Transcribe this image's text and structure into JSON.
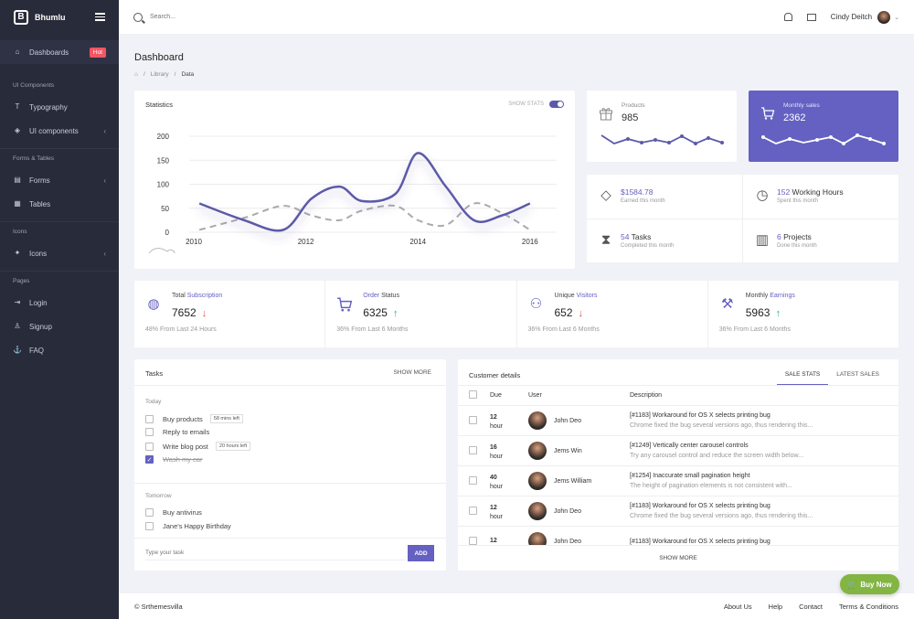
{
  "app": {
    "name": "Bhumlu"
  },
  "sidebar": {
    "items": [
      {
        "label": "Dashboards",
        "badge": "Hot"
      },
      {
        "section": "UI Components"
      },
      {
        "label": "Typography"
      },
      {
        "label": "UI components"
      },
      {
        "section": "Forms & Tables"
      },
      {
        "label": "Forms"
      },
      {
        "label": "Tables"
      },
      {
        "section": "Icons"
      },
      {
        "label": "Icons"
      },
      {
        "section": "Pages"
      },
      {
        "label": "Login"
      },
      {
        "label": "Signup"
      },
      {
        "label": "FAQ"
      }
    ]
  },
  "topbar": {
    "search_placeholder": "Search...",
    "user_name": "Cindy Deitch"
  },
  "page": {
    "title": "Dashboard",
    "crumbs": [
      "Library",
      "Data"
    ]
  },
  "statistics": {
    "title": "Statistics",
    "toggle_label": "SHOW STATS",
    "toggle_on": true
  },
  "chart_data": {
    "type": "line",
    "title": "Statistics",
    "yticks": [
      0,
      50,
      100,
      150,
      200
    ],
    "xticks": [
      "2010",
      "2012",
      "2014",
      "2016"
    ],
    "ylim": [
      0,
      200
    ],
    "xlim": [
      2010,
      2016
    ],
    "x": [
      2010.1,
      2010.9,
      2011.6,
      2012.1,
      2012.6,
      2013.0,
      2013.6,
      2014.0,
      2014.5,
      2015.0,
      2015.5,
      2016.0
    ],
    "series": [
      {
        "style": "solid",
        "color": "#5c5aa8",
        "values": [
          60,
          25,
          5,
          70,
          95,
          65,
          80,
          165,
          95,
          25,
          35,
          60
        ]
      },
      {
        "style": "dashed",
        "color": "#aaaaaa",
        "values": [
          5,
          30,
          55,
          35,
          25,
          45,
          55,
          25,
          15,
          60,
          40,
          5
        ]
      }
    ],
    "grid": true
  },
  "products": {
    "label": "Products",
    "value": "985"
  },
  "monthly_sales": {
    "label": "Monthly sales",
    "value": "2362"
  },
  "info": [
    {
      "value": "$1584.78",
      "text": "",
      "sub": "Earned this month",
      "icon": "diamond-icon"
    },
    {
      "value": "152",
      "text": " Working Hours",
      "sub": "Spent this month",
      "icon": "clock-icon"
    },
    {
      "value": "54",
      "text": " Tasks",
      "sub": "Completed this month",
      "icon": "hourglass-icon"
    },
    {
      "value": "6",
      "text": " Projects",
      "sub": "Done this month",
      "icon": "newspaper-icon"
    }
  ],
  "kpis": [
    {
      "title_a": "Total ",
      "title_b": "Subscription",
      "value": "7652",
      "trend": "down",
      "sub": "48% From Last 24 Hours"
    },
    {
      "title_a": "Order",
      "title_b": " Status",
      "value": "6325",
      "trend": "up",
      "sub": "36% From Last 6 Months"
    },
    {
      "title_a": "Unique ",
      "title_b": "Visitors",
      "value": "652",
      "trend": "down",
      "sub": "36% From Last 6 Months"
    },
    {
      "title_a": "Monthly ",
      "title_b": "Earnings",
      "value": "5963",
      "trend": "up",
      "sub": "36% From Last 6 Months"
    }
  ],
  "tasks": {
    "title": "Tasks",
    "show_more": "SHOW MORE",
    "today_label": "Today",
    "today": [
      {
        "text": "Buy products",
        "tag": "58 mins left",
        "done": false
      },
      {
        "text": "Reply to emails",
        "tag": "",
        "done": false
      },
      {
        "text": "Write blog post",
        "tag": "20 hours left",
        "done": false
      },
      {
        "text": "Wash my car",
        "tag": "",
        "done": true
      }
    ],
    "tomorrow_label": "Tomorrow",
    "tomorrow": [
      {
        "text": "Buy antivirus",
        "done": false
      },
      {
        "text": "Jane's Happy Birthday",
        "done": false
      }
    ],
    "input_placeholder": "Type your task",
    "add_label": "ADD"
  },
  "customer": {
    "title": "Customer details",
    "tabs": [
      "SALE STATS",
      "LATEST SALES"
    ],
    "columns": [
      "Due",
      "User",
      "Description"
    ],
    "rows": [
      {
        "due": "12",
        "unit": "hour",
        "user": "John Deo",
        "title": "[#1183] Workaround for OS X selects printing bug",
        "desc": "Chrome fixed the bug several versions ago, thus rendering this..."
      },
      {
        "due": "16",
        "unit": "hour",
        "user": "Jems Win",
        "title": "[#1249] Vertically center carousel controls",
        "desc": "Try any carousel control and reduce the screen width below..."
      },
      {
        "due": "40",
        "unit": "hour",
        "user": "Jems William",
        "title": "[#1254] Inaccurate small pagination height",
        "desc": "The height of pagination elements is not consistent with..."
      },
      {
        "due": "12",
        "unit": "hour",
        "user": "John Deo",
        "title": "[#1183] Workaround for OS X selects printing bug",
        "desc": "Chrome fixed the bug several versions ago, thus rendering this..."
      },
      {
        "due": "12",
        "unit": "",
        "user": "John Deo",
        "title": "[#1183] Workaround for OS X selects printing bug",
        "desc": ""
      }
    ],
    "show_more": "SHOW MORE"
  },
  "footer": {
    "copyright": "© Srthemesvilla",
    "links": [
      "About Us",
      "Help",
      "Contact",
      "Terms & Conditions"
    ]
  },
  "buy_now": {
    "label": "Buy Now"
  },
  "colors": {
    "accent": "#6461c2",
    "sidebar": "#282b39",
    "hot": "#f25563",
    "buy": "#82b541"
  }
}
